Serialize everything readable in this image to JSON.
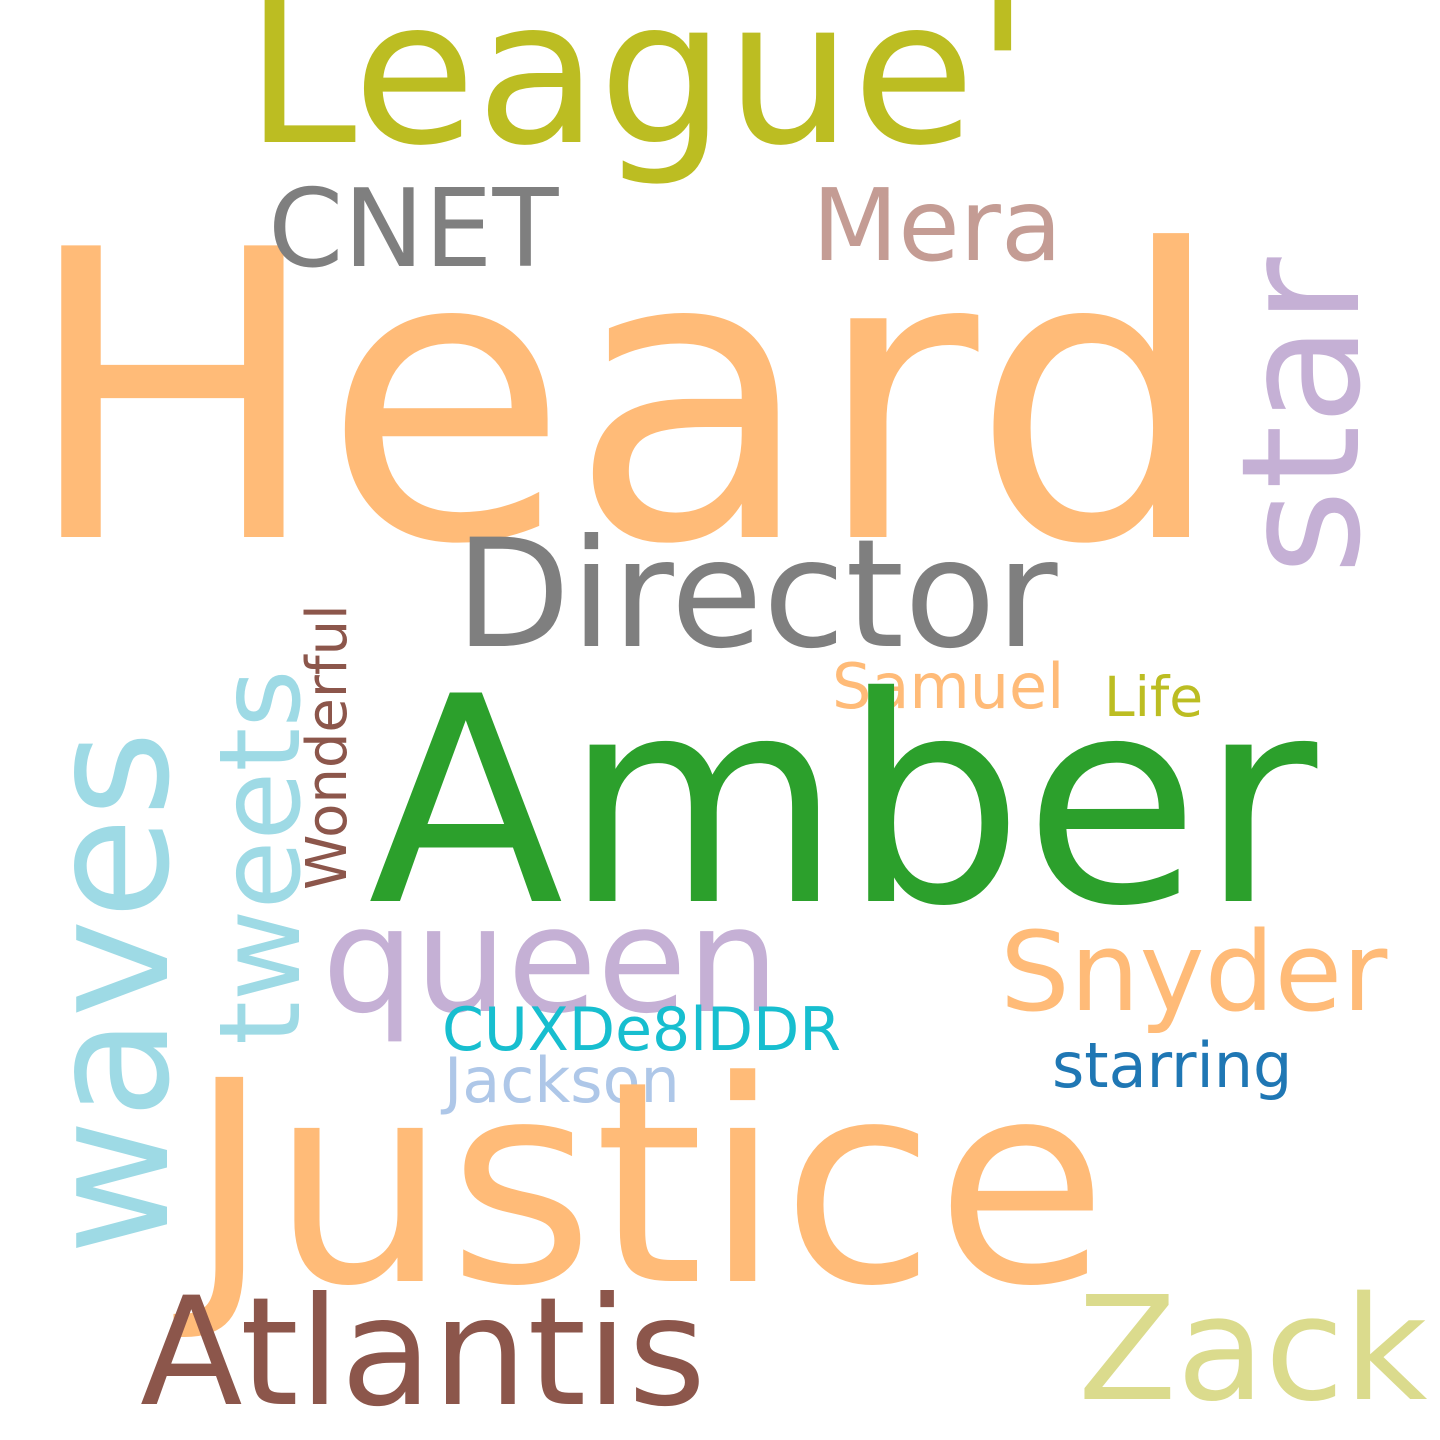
{
  "words": {
    "heard": {
      "text": "Heard",
      "color": "#ffbb78"
    },
    "amber": {
      "text": "Amber",
      "color": "#2ca02c"
    },
    "justice": {
      "text": "Justice",
      "color": "#ffbb78"
    },
    "league": {
      "text": "League'",
      "color": "#bcbd22"
    },
    "star": {
      "text": "star",
      "color": "#c5b0d5"
    },
    "waves": {
      "text": "waves",
      "color": "#9edae5"
    },
    "director": {
      "text": "Director",
      "color": "#7f7f7f"
    },
    "atlantis": {
      "text": "Atlantis",
      "color": "#8c564b"
    },
    "zack": {
      "text": "Zack",
      "color": "#dbdb8d"
    },
    "queen": {
      "text": "queen",
      "color": "#c5b0d5"
    },
    "snyder": {
      "text": "Snyder",
      "color": "#ffbb78"
    },
    "tweets": {
      "text": "tweets",
      "color": "#9edae5"
    },
    "cnet": {
      "text": "CNET",
      "color": "#7f7f7f"
    },
    "mera": {
      "text": "Mera",
      "color": "#c49c94"
    },
    "wonderful": {
      "text": "Wonderful",
      "color": "#8c564b"
    },
    "samuel": {
      "text": "Samuel",
      "color": "#ffbb78"
    },
    "life": {
      "text": "Life",
      "color": "#bcbd22"
    },
    "cuxde": {
      "text": "CUXDe8lDDR",
      "color": "#17becf"
    },
    "jackson": {
      "text": "Jackson",
      "color": "#aec7e8"
    },
    "starring": {
      "text": "starring",
      "color": "#1f77b4"
    }
  }
}
